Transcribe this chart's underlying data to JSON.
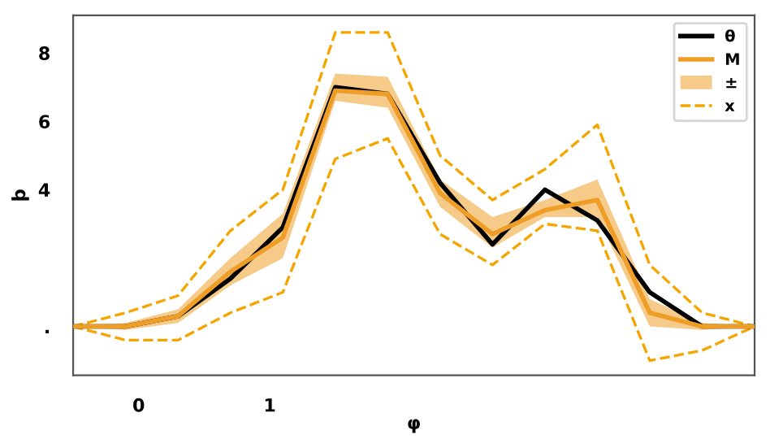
{
  "chart_data": {
    "type": "line",
    "xlabel": "φ",
    "ylabel": "þ",
    "annotations": [
      "±"
    ],
    "x": [
      -0.5,
      -0.1,
      0.3,
      0.7,
      1.1,
      1.5,
      1.9,
      2.3,
      2.7,
      3.1,
      3.5,
      3.9,
      4.3,
      4.7
    ],
    "series": [
      {
        "name": "θ",
        "color": "#000000",
        "values": [
          0,
          0,
          0.3,
          1.4,
          2.9,
          7.0,
          6.8,
          4.2,
          2.4,
          4.0,
          3.1,
          1.0,
          0,
          0
        ]
      },
      {
        "name": "M",
        "color": "#ee9e26",
        "values": [
          0,
          0,
          0.3,
          1.6,
          2.6,
          6.9,
          6.8,
          3.9,
          2.7,
          3.4,
          3.7,
          0.4,
          0,
          0
        ],
        "lower": [
          0,
          -0.1,
          0.1,
          1.2,
          2.0,
          6.6,
          6.4,
          3.5,
          2.3,
          3.2,
          3.2,
          0.0,
          -0.1,
          0
        ],
        "upper": [
          0,
          0.1,
          0.5,
          2.0,
          3.3,
          7.4,
          7.3,
          4.3,
          3.2,
          3.7,
          4.3,
          0.8,
          0.1,
          0
        ]
      },
      {
        "name": "x",
        "color": "#f5a500",
        "line_style": "dashed",
        "values": [
          0,
          0.4,
          0.9,
          2.8,
          4.0,
          8.6,
          8.6,
          5.0,
          3.7,
          4.6,
          5.9,
          1.8,
          0.4,
          0
        ]
      },
      {
        "color": "#f5a500",
        "line_style": "dashed",
        "values": [
          0,
          -0.4,
          -0.4,
          0.4,
          1.0,
          4.9,
          5.5,
          2.7,
          1.8,
          3.0,
          2.8,
          -1.0,
          -0.7,
          0
        ]
      }
    ],
    "xlim": [
      -0.5,
      4.7
    ],
    "ylim": [
      -1.43,
      9.1
    ],
    "xticks": [
      0,
      1
    ],
    "yticks": [
      {
        "value": 0,
        "label": "."
      },
      4,
      6,
      8
    ],
    "grid": false,
    "legend": "top right"
  }
}
